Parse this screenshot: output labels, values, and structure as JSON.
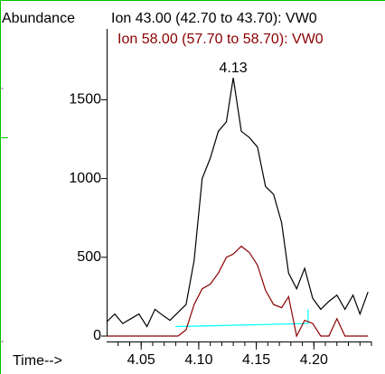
{
  "chart_data": {
    "type": "line",
    "ylabel": "Abundance",
    "xlabel": "Time-->",
    "x_ticks": [
      "4.05",
      "4.10",
      "4.15",
      "4.20"
    ],
    "y_ticks": [
      "0",
      "500",
      "1000",
      "1500"
    ],
    "xlim": [
      4.02,
      4.25
    ],
    "ylim": [
      0,
      1950
    ],
    "peak_label": "4.13",
    "peak_label_at": [
      4.13,
      1640
    ],
    "colors": {
      "frame": "#00c400",
      "axis": "#000000",
      "ion43": "#000000",
      "ion58": "#8b0000",
      "baseline": "#00ffff"
    },
    "series": [
      {
        "name": "Ion  43.00 (42.70 to 43.70): VW0",
        "color": "#000000",
        "x": [
          4.02,
          4.027,
          4.034,
          4.041,
          4.048,
          4.055,
          4.062,
          4.069,
          4.075,
          4.082,
          4.089,
          4.096,
          4.103,
          4.11,
          4.117,
          4.124,
          4.13,
          4.137,
          4.144,
          4.151,
          4.158,
          4.165,
          4.172,
          4.178,
          4.185,
          4.192,
          4.199,
          4.206,
          4.213,
          4.22,
          4.227,
          4.234,
          4.24,
          4.247
        ],
        "y": [
          90,
          140,
          80,
          110,
          140,
          60,
          170,
          130,
          100,
          150,
          200,
          480,
          1000,
          1130,
          1300,
          1360,
          1640,
          1300,
          1260,
          1200,
          950,
          900,
          720,
          400,
          300,
          430,
          240,
          170,
          220,
          260,
          170,
          260,
          140,
          280
        ]
      },
      {
        "name": "Ion  58.00 (57.70 to 58.70): VW0",
        "color": "#8b0000",
        "x": [
          4.02,
          4.027,
          4.034,
          4.041,
          4.048,
          4.055,
          4.062,
          4.069,
          4.075,
          4.082,
          4.089,
          4.096,
          4.103,
          4.11,
          4.117,
          4.124,
          4.13,
          4.137,
          4.144,
          4.151,
          4.158,
          4.165,
          4.172,
          4.178,
          4.185,
          4.192,
          4.199,
          4.206,
          4.213,
          4.22,
          4.227,
          4.234,
          4.24,
          4.247
        ],
        "y": [
          0,
          0,
          0,
          0,
          0,
          0,
          0,
          0,
          0,
          0,
          40,
          200,
          300,
          330,
          400,
          500,
          520,
          570,
          530,
          450,
          290,
          200,
          180,
          250,
          0,
          100,
          80,
          0,
          0,
          110,
          0,
          0,
          0,
          0
        ]
      }
    ],
    "baseline": {
      "x": [
        4.08,
        4.195
      ],
      "y": [
        60,
        80
      ],
      "end_y": [
        60,
        170
      ]
    }
  }
}
